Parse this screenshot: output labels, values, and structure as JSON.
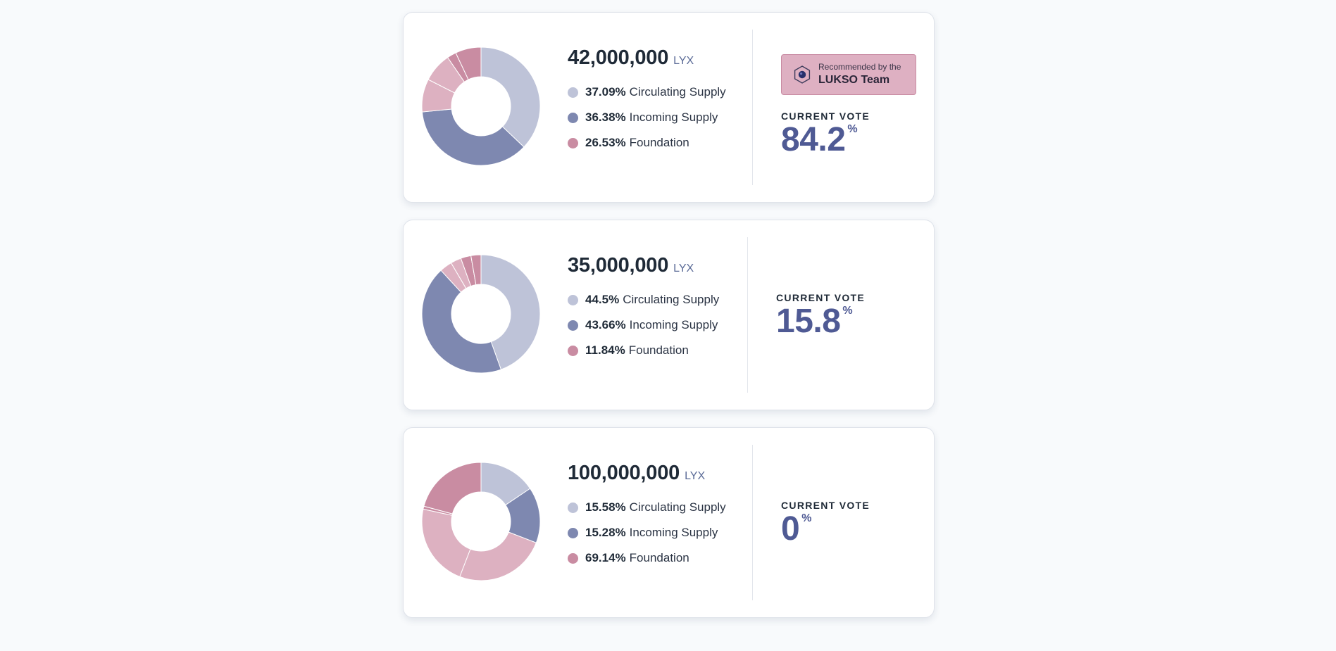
{
  "colors": {
    "circulating": "#bec3d8",
    "incoming": "#7e88b0",
    "foundation": "#c98ca2",
    "foundation_light": "#ddb1c1",
    "accent": "#4f5a94",
    "badge_bg": "#deb0c2"
  },
  "proposals": [
    {
      "amount": "42,000,000",
      "unit": "LYX",
      "legend": [
        {
          "pct": "37.09%",
          "label": "Circulating Supply",
          "key": "circulating"
        },
        {
          "pct": "36.38%",
          "label": "Incoming Supply",
          "key": "incoming"
        },
        {
          "pct": "26.53%",
          "label": "Foundation",
          "key": "foundation"
        }
      ],
      "recommended": true,
      "badge": {
        "top": "Recommended by the",
        "bottom": "LUKSO Team",
        "icon": "lukso-hexagon-icon"
      },
      "vote_label": "CURRENT VOTE",
      "vote_value": "84.2",
      "vote_unit": "%"
    },
    {
      "amount": "35,000,000",
      "unit": "LYX",
      "legend": [
        {
          "pct": "44.5%",
          "label": "Circulating Supply",
          "key": "circulating"
        },
        {
          "pct": "43.66%",
          "label": "Incoming Supply",
          "key": "incoming"
        },
        {
          "pct": "11.84%",
          "label": "Foundation",
          "key": "foundation"
        }
      ],
      "recommended": false,
      "vote_label": "CURRENT VOTE",
      "vote_value": "15.8",
      "vote_unit": "%"
    },
    {
      "amount": "100,000,000",
      "unit": "LYX",
      "legend": [
        {
          "pct": "15.58%",
          "label": "Circulating Supply",
          "key": "circulating"
        },
        {
          "pct": "15.28%",
          "label": "Incoming Supply",
          "key": "incoming"
        },
        {
          "pct": "69.14%",
          "label": "Foundation",
          "key": "foundation"
        }
      ],
      "recommended": false,
      "vote_label": "CURRENT VOTE",
      "vote_value": "0",
      "vote_unit": "%"
    }
  ],
  "chart_data": [
    {
      "type": "pie",
      "slices": [
        {
          "label": "Circulating Supply",
          "value": 37.09,
          "color": "#bec3d8"
        },
        {
          "label": "Incoming Supply",
          "value": 36.38,
          "color": "#7e88b0"
        },
        {
          "label": "Foundation",
          "value": 9.0,
          "color": "#ddb1c1"
        },
        {
          "label": "Foundation",
          "value": 8.0,
          "color": "#ddb1c1"
        },
        {
          "label": "Foundation",
          "value": 2.5,
          "color": "#c98ca2"
        },
        {
          "label": "Foundation",
          "value": 7.03,
          "color": "#c98ca2"
        }
      ]
    },
    {
      "type": "pie",
      "slices": [
        {
          "label": "Circulating Supply",
          "value": 44.5,
          "color": "#bec3d8"
        },
        {
          "label": "Incoming Supply",
          "value": 43.66,
          "color": "#7e88b0"
        },
        {
          "label": "Foundation",
          "value": 3.4,
          "color": "#ddb1c1"
        },
        {
          "label": "Foundation",
          "value": 2.9,
          "color": "#ddb1c1"
        },
        {
          "label": "Foundation",
          "value": 2.8,
          "color": "#c98ca2"
        },
        {
          "label": "Foundation",
          "value": 2.74,
          "color": "#c98ca2"
        }
      ]
    },
    {
      "type": "pie",
      "slices": [
        {
          "label": "Circulating Supply",
          "value": 15.58,
          "color": "#bec3d8"
        },
        {
          "label": "Incoming Supply",
          "value": 15.28,
          "color": "#7e88b0"
        },
        {
          "label": "Foundation",
          "value": 25.0,
          "color": "#ddb1c1"
        },
        {
          "label": "Foundation",
          "value": 22.5,
          "color": "#ddb1c1"
        },
        {
          "label": "Foundation",
          "value": 0.8,
          "color": "#c98ca2"
        },
        {
          "label": "Foundation",
          "value": 20.84,
          "color": "#c98ca2"
        }
      ]
    }
  ]
}
